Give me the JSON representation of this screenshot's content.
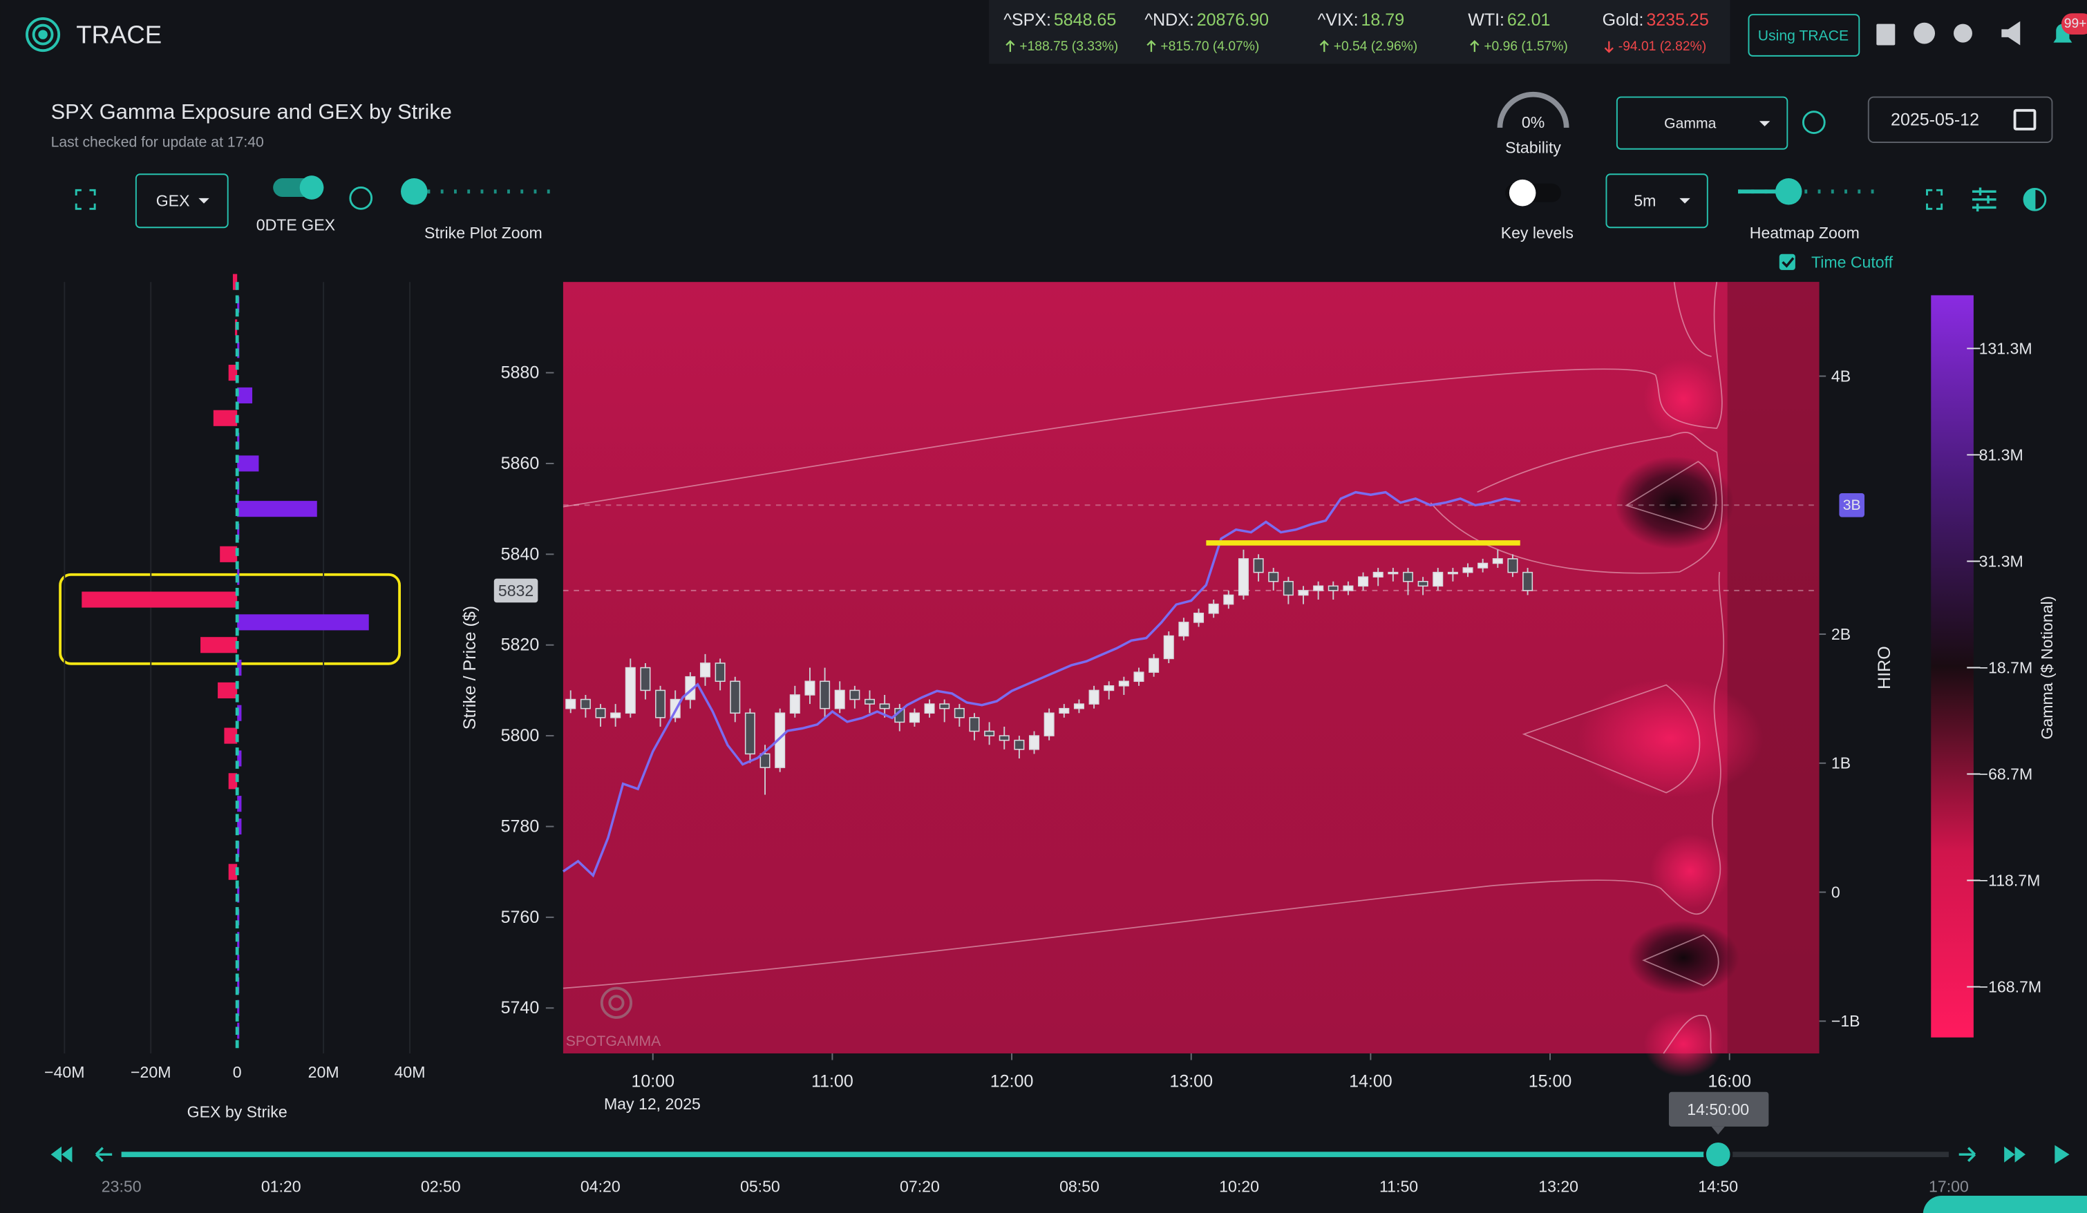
{
  "app": {
    "name": "TRACE",
    "button": "Using TRACE",
    "badge": "99+"
  },
  "tickers": [
    {
      "symbol": "^SPX:",
      "price": "5848.65",
      "change": "+188.75 (3.33%)",
      "direction": "up"
    },
    {
      "symbol": "^NDX:",
      "price": "20876.90",
      "change": "+815.70 (4.07%)",
      "direction": "up"
    },
    {
      "symbol": "^VIX:",
      "price": "18.79",
      "change": "+0.54 (2.96%)",
      "direction": "up"
    },
    {
      "symbol": "WTI:",
      "price": "62.01",
      "change": "+0.96 (1.57%)",
      "direction": "up"
    },
    {
      "symbol": "Gold:",
      "price": "3235.25",
      "change": "-94.01 (2.82%)",
      "direction": "down"
    }
  ],
  "header": {
    "title": "SPX Gamma Exposure and GEX by Strike",
    "subtitle": "Last checked for update at 17:40"
  },
  "controls": {
    "metric": "GEX",
    "zero_dte": "0DTE GEX",
    "strike_zoom": "Strike Plot Zoom",
    "stability_value": "0%",
    "stability": "Stability",
    "view": "Gamma",
    "date": "2025-05-12",
    "key_levels": "Key levels",
    "interval": "5m",
    "heatmap_zoom": "Heatmap Zoom",
    "time_cutoff": "Time Cutoff"
  },
  "chart_data": [
    {
      "type": "bar",
      "orientation": "horizontal",
      "xlabel": "GEX by Strike",
      "y": [
        5900,
        5895,
        5890,
        5885,
        5880,
        5875,
        5870,
        5865,
        5860,
        5855,
        5850,
        5845,
        5840,
        5835,
        5830,
        5825,
        5820,
        5815,
        5810,
        5805,
        5800,
        5795,
        5790,
        5785,
        5780,
        5775,
        5770,
        5765,
        5760,
        5755,
        5750,
        5745,
        5740,
        5735
      ],
      "values": [
        -1,
        0.5,
        -0.5,
        0.5,
        -2,
        3.5,
        -5.5,
        0.5,
        5,
        0.5,
        18.5,
        0.5,
        -4,
        0.5,
        -36,
        30.5,
        -8.5,
        1,
        -4.5,
        1,
        -3,
        1,
        -2,
        1,
        1,
        0.5,
        -2,
        0.5,
        0.5,
        0.5,
        0.5,
        0.5,
        0.5,
        0.5
      ],
      "positive_color": "#7b22e8",
      "negative_color": "#f0185a",
      "xlim": [
        -45,
        45
      ],
      "xticks": [
        {
          "value": -40,
          "label": "−40M"
        },
        {
          "value": -20,
          "label": "−20M"
        },
        0,
        {
          "value": 20,
          "label": "20M"
        },
        {
          "value": 40,
          "label": "40M"
        }
      ],
      "ylim": [
        5730,
        5900
      ],
      "grid": true
    },
    {
      "type": "candlestick",
      "ylabel": "Strike / Price ($)",
      "y2label": "HIRO",
      "date_label": "May 12, 2025",
      "watermark": "SPOTGAMMA",
      "x": [
        "09:30",
        "09:35",
        "09:40",
        "09:45",
        "09:50",
        "09:55",
        "10:00",
        "10:05",
        "10:10",
        "10:15",
        "10:20",
        "10:25",
        "10:30",
        "10:35",
        "10:40",
        "10:45",
        "10:50",
        "10:55",
        "11:00",
        "11:05",
        "11:10",
        "11:15",
        "11:20",
        "11:25",
        "11:30",
        "11:35",
        "11:40",
        "11:45",
        "11:50",
        "11:55",
        "12:00",
        "12:05",
        "12:10",
        "12:15",
        "12:20",
        "12:25",
        "12:30",
        "12:35",
        "12:40",
        "12:45",
        "12:50",
        "12:55",
        "13:00",
        "13:05",
        "13:10",
        "13:15",
        "13:20",
        "13:25",
        "13:30",
        "13:35",
        "13:40",
        "13:45",
        "13:50",
        "13:55",
        "14:00",
        "14:05",
        "14:10",
        "14:15",
        "14:20",
        "14:25",
        "14:30",
        "14:35",
        "14:40",
        "14:45",
        "14:50"
      ],
      "open": [
        5806,
        5808,
        5806,
        5804,
        5805,
        5815,
        5810,
        5804,
        5808,
        5813,
        5816,
        5812,
        5805,
        5796,
        5793,
        5805,
        5809,
        5812,
        5806,
        5810,
        5808,
        5807,
        5806,
        5803,
        5805,
        5807,
        5806,
        5804,
        5801,
        5800,
        5799,
        5797,
        5800,
        5805,
        5806,
        5807,
        5810,
        5811,
        5812,
        5814,
        5817,
        5822,
        5825,
        5827,
        5829,
        5831,
        5839,
        5836,
        5834,
        5831,
        5832,
        5833,
        5832,
        5833,
        5835,
        5836,
        5836,
        5834,
        5833,
        5836,
        5836,
        5837,
        5838,
        5839,
        5836
      ],
      "high": [
        5810,
        5809,
        5807,
        5807,
        5817,
        5816,
        5811,
        5810,
        5814,
        5818,
        5817,
        5813,
        5806,
        5798,
        5806,
        5811,
        5815,
        5815,
        5812,
        5811,
        5810,
        5809,
        5807,
        5806,
        5808,
        5808,
        5807,
        5805,
        5803,
        5802,
        5800,
        5801,
        5806,
        5807,
        5808,
        5811,
        5812,
        5813,
        5815,
        5818,
        5823,
        5826,
        5828,
        5830,
        5832,
        5841,
        5840,
        5837,
        5835,
        5833,
        5834,
        5834,
        5834,
        5836,
        5837,
        5837,
        5837,
        5835,
        5837,
        5837,
        5838,
        5839,
        5841,
        5840,
        5837
      ],
      "low": [
        5805,
        5804,
        5802,
        5802,
        5804,
        5808,
        5802,
        5803,
        5806,
        5811,
        5810,
        5803,
        5794,
        5787,
        5792,
        5804,
        5807,
        5804,
        5805,
        5806,
        5805,
        5804,
        5801,
        5802,
        5804,
        5803,
        5802,
        5799,
        5798,
        5797,
        5795,
        5796,
        5799,
        5804,
        5805,
        5806,
        5808,
        5809,
        5811,
        5813,
        5816,
        5821,
        5824,
        5826,
        5828,
        5830,
        5834,
        5832,
        5829,
        5829,
        5830,
        5830,
        5831,
        5832,
        5833,
        5834,
        5831,
        5831,
        5832,
        5834,
        5835,
        5836,
        5837,
        5835,
        5831
      ],
      "close": [
        5808,
        5806,
        5804,
        5805,
        5815,
        5810,
        5804,
        5808,
        5813,
        5816,
        5812,
        5805,
        5796,
        5793,
        5805,
        5809,
        5812,
        5806,
        5810,
        5808,
        5807,
        5806,
        5803,
        5805,
        5807,
        5806,
        5804,
        5801,
        5800,
        5799,
        5797,
        5800,
        5805,
        5806,
        5807,
        5810,
        5811,
        5812,
        5814,
        5817,
        5822,
        5825,
        5827,
        5829,
        5831,
        5839,
        5836,
        5834,
        5831,
        5832,
        5833,
        5832,
        5833,
        5835,
        5836,
        5836,
        5834,
        5833,
        5836,
        5836,
        5837,
        5838,
        5839,
        5836,
        5832
      ],
      "series": [
        {
          "color": "#7a6cf0",
          "axis": "y2",
          "values": [
            0.16,
            0.24,
            0.13,
            0.42,
            0.84,
            0.8,
            1.09,
            1.3,
            1.51,
            1.61,
            1.4,
            1.14,
            0.99,
            1.04,
            1.14,
            1.25,
            1.27,
            1.3,
            1.4,
            1.32,
            1.35,
            1.4,
            1.35,
            1.45,
            1.51,
            1.56,
            1.54,
            1.47,
            1.45,
            1.48,
            1.56,
            1.61,
            1.66,
            1.71,
            1.76,
            1.79,
            1.84,
            1.89,
            1.95,
            1.97,
            2.09,
            2.23,
            2.26,
            2.38,
            2.74,
            2.81,
            2.79,
            2.87,
            2.79,
            2.81,
            2.85,
            2.88,
            3.05,
            3.1,
            3.08,
            3.1,
            3.02,
            3.05,
            3.0,
            3.02,
            3.05,
            3.0,
            3.02,
            3.05,
            3.03
          ]
        }
      ],
      "xlim": [
        "09:30",
        "16:30"
      ],
      "xticks": [
        "10:00",
        "11:00",
        "12:00",
        "13:00",
        "14:00",
        "15:00",
        "16:00"
      ],
      "ylim": [
        5730,
        5900
      ],
      "yticks": [
        5740,
        5760,
        5780,
        5800,
        5820,
        5840,
        5860,
        5880
      ],
      "y2lim": [
        -1.25,
        4.73
      ],
      "y2ticks": [
        {
          "value": -1,
          "label": "−1B"
        },
        0,
        {
          "value": 1,
          "label": "1B"
        },
        {
          "value": 2,
          "label": "2B"
        },
        {
          "value": 4,
          "label": "4B"
        }
      ],
      "price_marker": 5832,
      "hiro_marker": {
        "value": 3,
        "label": "3B"
      },
      "key_level": {
        "price": 5842.5,
        "from": "13:05",
        "to": "14:50",
        "color": "#f5e614"
      },
      "colorbar": {
        "label": "Gamma ($ Notional)",
        "zlim": [
          -192.5,
          156.3
        ],
        "colors": [
          "#ff1a5e",
          "#d0154c",
          "#1a0c12",
          "#4a1a7a",
          "#8a2be2"
        ],
        "zticks": [
          {
            "value": 131.3,
            "label": "131.3M"
          },
          {
            "value": 81.3,
            "label": "81.3M"
          },
          {
            "value": 31.3,
            "label": "31.3M"
          },
          {
            "value": -18.7,
            "label": "−18.7M"
          },
          {
            "value": -68.7,
            "label": "−68.7M"
          },
          {
            "value": -118.7,
            "label": "−118.7M"
          },
          {
            "value": -168.7,
            "label": "−168.7M"
          }
        ]
      }
    }
  ],
  "timeline": {
    "ticks": [
      "23:50",
      "01:20",
      "02:50",
      "04:20",
      "05:50",
      "07:20",
      "08:50",
      "10:20",
      "11:50",
      "13:20",
      "14:50",
      "17:00"
    ],
    "current": "14:50:00"
  }
}
